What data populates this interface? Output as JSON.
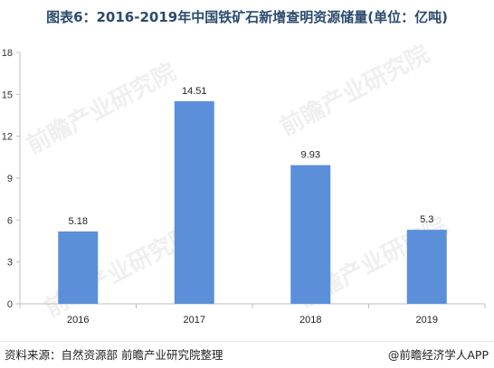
{
  "title": "图表6：2016-2019年中国铁矿石新增查明资源储量(单位：亿吨)",
  "footer": {
    "source": "资料来源：自然资源部 前瞻产业研究院整理",
    "brand": "@前瞻经济学人APP"
  },
  "watermark": "前瞻产业研究院",
  "chart_data": {
    "type": "bar",
    "categories": [
      "2016",
      "2017",
      "2018",
      "2019"
    ],
    "values": [
      5.18,
      14.51,
      9.93,
      5.3
    ],
    "value_labels": [
      "5.18",
      "14.51",
      "9.93",
      "5.3"
    ],
    "ylim": [
      0,
      18
    ],
    "yticks": [
      0,
      3,
      6,
      9,
      12,
      15,
      18
    ],
    "bar_color": "#5b8fd9",
    "axis_color": "#bfbfbf",
    "grid": false
  }
}
